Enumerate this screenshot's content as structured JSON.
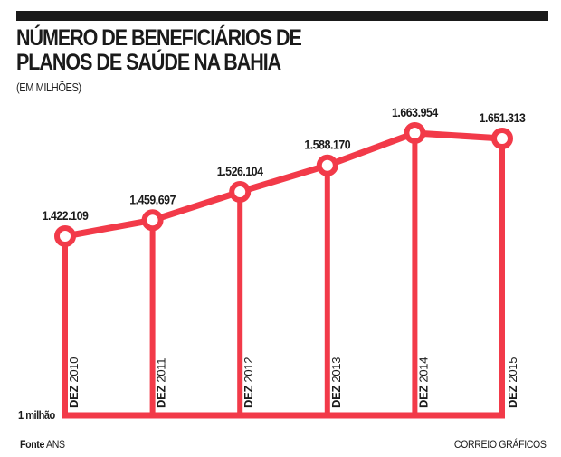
{
  "header": {
    "title_line1": "NÚMERO DE BENEFICIÁRIOS DE",
    "title_line2": "PLANOS DE SAÚDE NA BAHIA",
    "subtitle": "(EM MILHÕES)"
  },
  "footer": {
    "source_label": "Fonte",
    "source_value": "ANS",
    "credit": "CORREIO GRÁFICOS"
  },
  "colors": {
    "accent": "#f23a49",
    "text": "#1a1a1a",
    "bar": "#1a1a1a"
  },
  "chart_data": {
    "type": "line",
    "title": "NÚMERO DE BENEFICIÁRIOS DE PLANOS DE SAÚDE NA BAHIA",
    "subtitle": "(EM MILHÕES)",
    "xlabel": "",
    "ylabel": "",
    "baseline_label": "1 milhão",
    "baseline_value": 1000000,
    "categories": [
      {
        "prefix": "DEZ",
        "year": "2010"
      },
      {
        "prefix": "DEZ",
        "year": "2011"
      },
      {
        "prefix": "DEZ",
        "year": "2012"
      },
      {
        "prefix": "DEZ",
        "year": "2013"
      },
      {
        "prefix": "DEZ",
        "year": "2014"
      },
      {
        "prefix": "DEZ",
        "year": "2015"
      }
    ],
    "values": [
      1422109,
      1459697,
      1526104,
      1588170,
      1663954,
      1651313
    ],
    "value_labels": [
      "1.422.109",
      "1.459.697",
      "1.526.104",
      "1.588.170",
      "1.663.954",
      "1.651.313"
    ],
    "grid": false,
    "legend": "none"
  }
}
